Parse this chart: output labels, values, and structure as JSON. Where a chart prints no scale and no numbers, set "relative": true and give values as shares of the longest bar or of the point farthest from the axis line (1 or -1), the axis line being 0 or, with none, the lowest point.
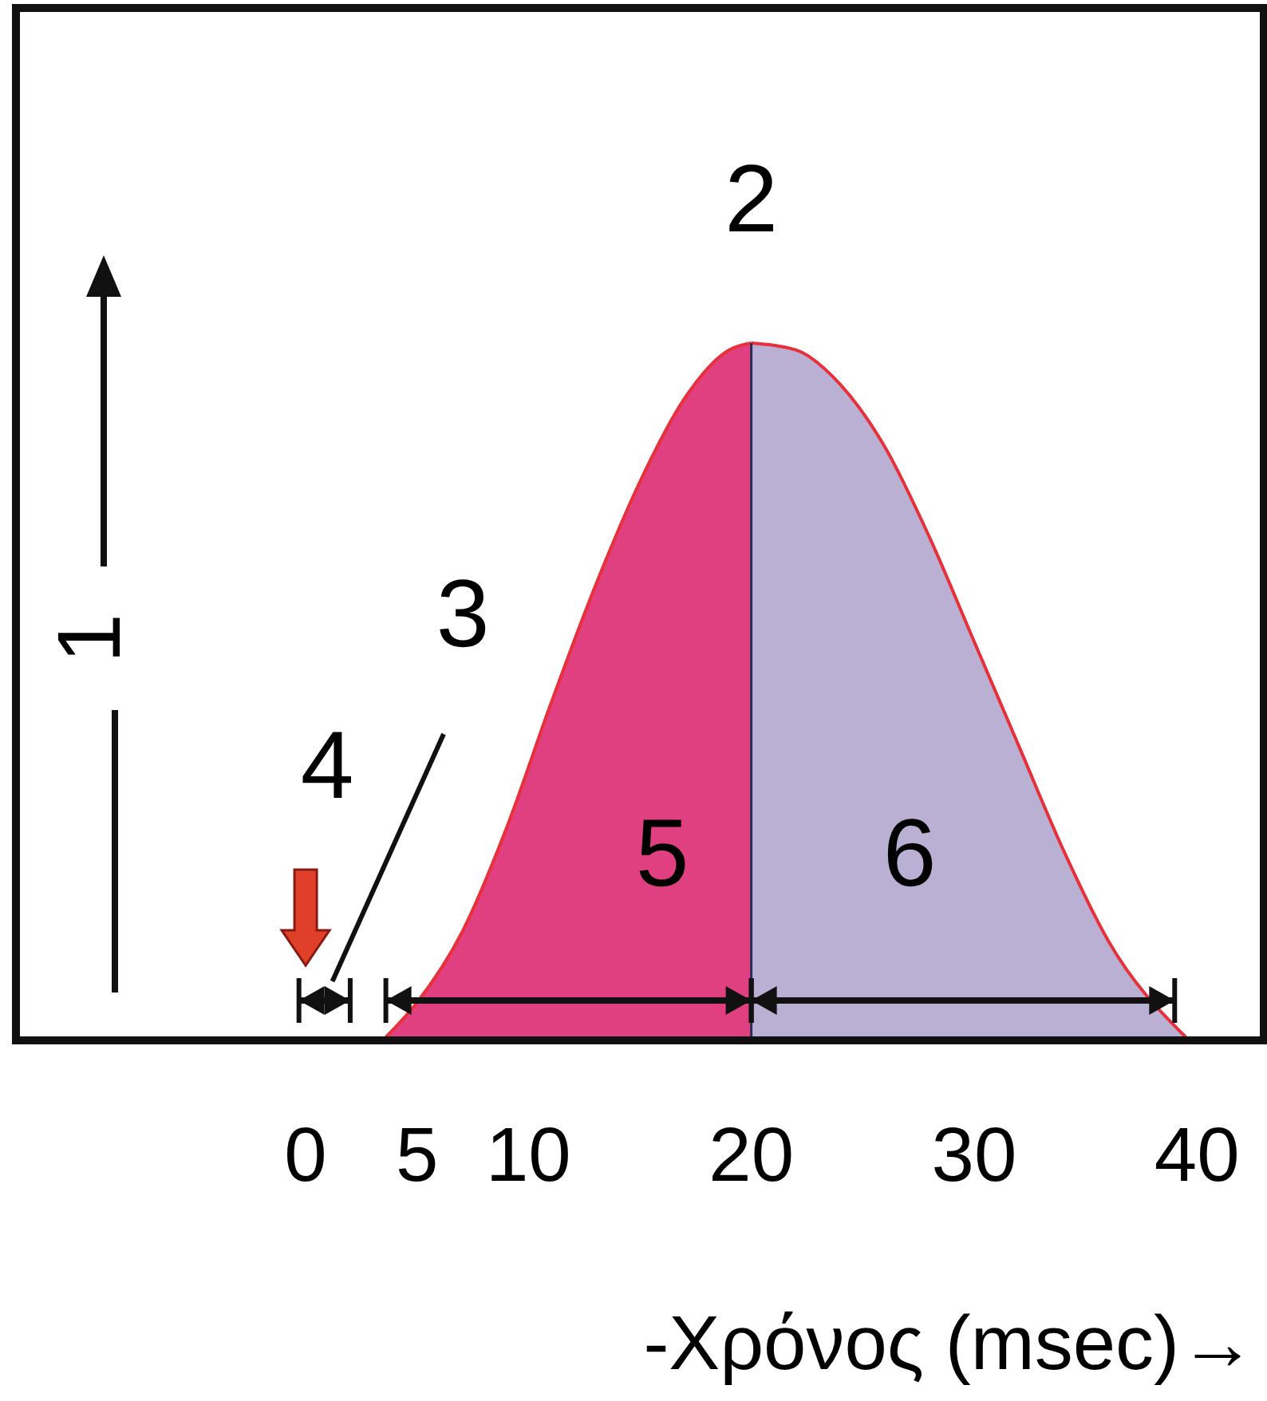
{
  "chart_data": {
    "type": "area",
    "relative": true,
    "xlabel": "-Χρόνος (msec)→",
    "ylabel": "1",
    "xlim": [
      -13,
      43
    ],
    "xticks": [
      0,
      5,
      10,
      20,
      30,
      40
    ],
    "grid": false,
    "series": [
      {
        "color": "#e0407f",
        "x": [
          3.6,
          5,
          7,
          9,
          11,
          13,
          15,
          17,
          19,
          20
        ],
        "values": [
          0,
          0.05,
          0.15,
          0.3,
          0.48,
          0.65,
          0.8,
          0.92,
          0.99,
          1
        ]
      },
      {
        "color": "#b9b0d3",
        "x": [
          20,
          22,
          24,
          26,
          28,
          30,
          32,
          34,
          36,
          39.5
        ],
        "values": [
          1,
          0.99,
          0.94,
          0.85,
          0.72,
          0.57,
          0.42,
          0.27,
          0.14,
          0
        ]
      }
    ],
    "ref_lines": [
      {
        "axis": "x",
        "value": 20,
        "color": "#2a2a5a"
      }
    ],
    "annotations": [
      {
        "text": "2",
        "x": 20,
        "y": 1
      },
      "3",
      "4",
      "5",
      "6"
    ]
  }
}
